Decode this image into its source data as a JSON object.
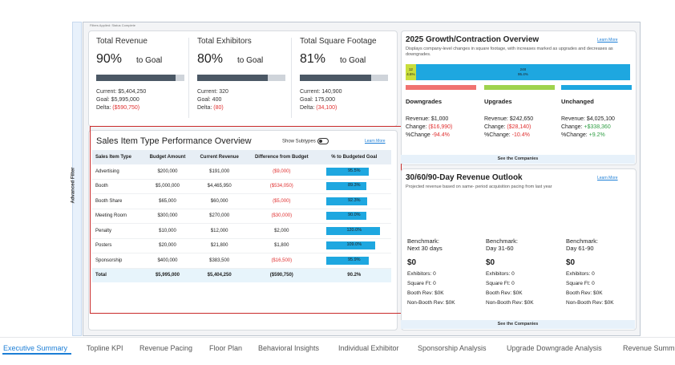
{
  "filters_note": "Filters Applied: Status Complete",
  "advanced_filter": "Advanced Filter",
  "kpis": [
    {
      "title": "Total Revenue",
      "pct": "90%",
      "goal_label": "to Goal",
      "fill": 0.9,
      "current": "Current: $5,404,250",
      "goal": "Goal: $5,995,000",
      "delta_label": "Delta: ",
      "delta": "($590,750)"
    },
    {
      "title": "Total Exhibitors",
      "pct": "80%",
      "goal_label": "to Goal",
      "fill": 0.8,
      "current": "Current: 320",
      "goal": "Goal: 400",
      "delta_label": "Delta: ",
      "delta": "(80)"
    },
    {
      "title": "Total Square Footage",
      "pct": "81%",
      "goal_label": "to Goal",
      "fill": 0.81,
      "current": "Current: 140,900",
      "goal": "Goal: 175,000",
      "delta_label": "Delta: ",
      "delta": "(34,100)"
    }
  ],
  "sales": {
    "title": "Sales Item Type Performance Overview",
    "show_subtypes": "Show Subtypes",
    "learn_more": "Learn More",
    "columns": [
      "Sales Item Type",
      "Budget Amount",
      "Current Revenue",
      "Difference from Budget",
      "% to Budgeted Goal"
    ],
    "rows": [
      {
        "type": "Advertising",
        "budget": "$200,000",
        "current": "$191,000",
        "diff": "($9,000)",
        "neg": true,
        "pct": "95.5%",
        "fill": 0.955
      },
      {
        "type": "Booth",
        "budget": "$5,000,000",
        "current": "$4,465,950",
        "diff": "($534,050)",
        "neg": true,
        "pct": "89.3%",
        "fill": 0.893
      },
      {
        "type": "Booth Share",
        "budget": "$65,000",
        "current": "$60,000",
        "diff": "($5,000)",
        "neg": true,
        "pct": "92.3%",
        "fill": 0.923
      },
      {
        "type": "Meeting Room",
        "budget": "$300,000",
        "current": "$270,000",
        "diff": "($30,000)",
        "neg": true,
        "pct": "90.0%",
        "fill": 0.9
      },
      {
        "type": "Penalty",
        "budget": "$10,000",
        "current": "$12,000",
        "diff": "$2,000",
        "neg": false,
        "pct": "120.0%",
        "fill": 1.2
      },
      {
        "type": "Posters",
        "budget": "$20,000",
        "current": "$21,800",
        "diff": "$1,800",
        "neg": false,
        "pct": "109.0%",
        "fill": 1.09
      },
      {
        "type": "Sponsorship",
        "budget": "$400,000",
        "current": "$383,500",
        "diff": "($16,500)",
        "neg": true,
        "pct": "95.9%",
        "fill": 0.959
      }
    ],
    "total": {
      "type": "Total",
      "budget": "$5,995,000",
      "current": "$5,404,250",
      "diff": "($590,750)",
      "pct": "90.2%"
    }
  },
  "growth": {
    "title": "2025 Growth/Contraction Overview",
    "learn_more": "Learn More",
    "desc": "Displays company-level changes in square footage, with increases marked as upgrades and decreases as downgrades.",
    "stack": [
      {
        "label": "12",
        "sub": "4.6%",
        "share": 0.046,
        "color": "#c9de3c"
      },
      {
        "label": "248",
        "sub": "95.4%",
        "share": 0.954,
        "color": "#1ea7e0"
      }
    ],
    "cols": [
      {
        "name": "Downgrades",
        "color": "#f07370",
        "revenue": "Revenue: $1,000",
        "change_label": "Change: ",
        "change": "($16,990)",
        "change_neg": true,
        "pct_label": "%Change ",
        "pct": "-94.4%",
        "pct_neg": true
      },
      {
        "name": "Upgrades",
        "color": "#9fd34e",
        "revenue": "Revenue: $242,650",
        "change_label": "Change: ",
        "change": "($28,140)",
        "change_neg": true,
        "pct_label": "%Change: ",
        "pct": "-10.4%",
        "pct_neg": true
      },
      {
        "name": "Unchanged",
        "color": "#1ea7e0",
        "revenue": "Revenue: $4,025,100",
        "change_label": "Change: ",
        "change": "+$338,360",
        "change_neg": false,
        "pct_label": "%Change: ",
        "pct": "+9.2%",
        "pct_neg": false
      }
    ],
    "see_companies": "See the Companies"
  },
  "outlook": {
    "title": "30/60/90-Day Revenue Outlook",
    "learn_more": "Learn More",
    "desc": "Projected revenue based on same- period acquisition pacing from last year",
    "cols": [
      {
        "bench": "Benchmark:",
        "period": "Next 30 days",
        "value": "$0",
        "exhibitors": "Exhibitors: 0",
        "sqft": "Square Ft: 0",
        "booth": "Booth Rev: $0K",
        "nonbooth": "Non-Booth Rev: $0K"
      },
      {
        "bench": "Benchmark:",
        "period": "Day 31-60",
        "value": "$0",
        "exhibitors": "Exhibitors: 0",
        "sqft": "Square Ft: 0",
        "booth": "Booth Rev: $0K",
        "nonbooth": "Non-Booth Rev: $0K"
      },
      {
        "bench": "Benchmark:",
        "period": "Day 61-90",
        "value": "$0",
        "exhibitors": "Exhibitors: 0",
        "sqft": "Square Ft: 0",
        "booth": "Booth Rev: $0K",
        "nonbooth": "Non-Booth Rev: $0K"
      }
    ],
    "see_companies": "See the Companies"
  },
  "tabs": [
    "Executive Summary",
    "Topline KPI",
    "Revenue Pacing",
    "Floor Plan",
    "Behavioral Insights",
    "Individual Exhibitor",
    "Sponsorship Analysis",
    "Upgrade Downgrade Analysis",
    "Revenue Summ"
  ],
  "active_tab": 0
}
